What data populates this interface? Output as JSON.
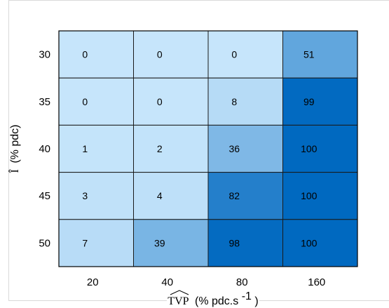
{
  "chart_data": {
    "type": "heatmap",
    "title": "",
    "x_categories": [
      "20",
      "40",
      "80",
      "160"
    ],
    "y_categories": [
      "30",
      "35",
      "40",
      "45",
      "50"
    ],
    "values": [
      [
        0,
        0,
        0,
        51
      ],
      [
        0,
        0,
        8,
        99
      ],
      [
        1,
        2,
        36,
        100
      ],
      [
        3,
        4,
        82,
        100
      ],
      [
        7,
        39,
        98,
        100
      ]
    ],
    "xlabel": {
      "symbol": "TVP",
      "unit": "(% pdc.s",
      "superscript": "-1",
      "close": ")"
    },
    "ylabel": {
      "symbol": "Î",
      "unit": "(% pdc)"
    },
    "color_scale": {
      "min": 0,
      "max": 100,
      "low_color": "#c6e5fb",
      "high_color": "#0069c0"
    },
    "grid": true,
    "legend": "none"
  }
}
